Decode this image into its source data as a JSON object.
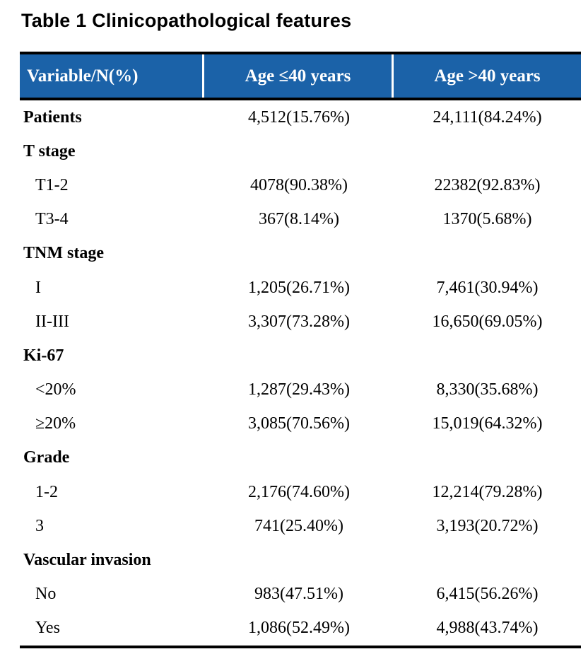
{
  "title": "Table 1 Clinicopathological features",
  "colors": {
    "header_bg": "#1b62a8",
    "header_text": "#ffffff",
    "rule": "#000000",
    "body_text": "#000000",
    "background": "#ffffff"
  },
  "table": {
    "columns": [
      "Variable/N(%)",
      "Age ≤40 years",
      "Age >40 years"
    ],
    "rows": [
      {
        "label": "Patients",
        "bold": true,
        "age_le_40": "4,512(15.76%)",
        "age_gt_40": "24,111(84.24%)"
      },
      {
        "label": "T stage",
        "bold": true,
        "age_le_40": "",
        "age_gt_40": ""
      },
      {
        "label": "T1-2",
        "bold": false,
        "age_le_40": "4078(90.38%)",
        "age_gt_40": "22382(92.83%)"
      },
      {
        "label": "T3-4",
        "bold": false,
        "age_le_40": "367(8.14%)",
        "age_gt_40": "1370(5.68%)"
      },
      {
        "label": "TNM stage",
        "bold": true,
        "age_le_40": "",
        "age_gt_40": ""
      },
      {
        "label": "I",
        "bold": false,
        "age_le_40": "1,205(26.71%)",
        "age_gt_40": "7,461(30.94%)"
      },
      {
        "label": "II-III",
        "bold": false,
        "age_le_40": "3,307(73.28%)",
        "age_gt_40": "16,650(69.05%)"
      },
      {
        "label": "Ki-67",
        "bold": true,
        "age_le_40": "",
        "age_gt_40": ""
      },
      {
        "label": "<20%",
        "bold": false,
        "age_le_40": "1,287(29.43%)",
        "age_gt_40": "8,330(35.68%)"
      },
      {
        "label": "≥20%",
        "bold": false,
        "age_le_40": "3,085(70.56%)",
        "age_gt_40": "15,019(64.32%)"
      },
      {
        "label": "Grade",
        "bold": true,
        "age_le_40": "",
        "age_gt_40": ""
      },
      {
        "label": "1-2",
        "bold": false,
        "age_le_40": "2,176(74.60%)",
        "age_gt_40": "12,214(79.28%)"
      },
      {
        "label": "3",
        "bold": false,
        "age_le_40": "741(25.40%)",
        "age_gt_40": "3,193(20.72%)"
      },
      {
        "label": "Vascular invasion",
        "bold": true,
        "age_le_40": "",
        "age_gt_40": ""
      },
      {
        "label": "No",
        "bold": false,
        "age_le_40": "983(47.51%)",
        "age_gt_40": "6,415(56.26%)"
      },
      {
        "label": "Yes",
        "bold": false,
        "age_le_40": "1,086(52.49%)",
        "age_gt_40": "4,988(43.74%)"
      }
    ]
  }
}
